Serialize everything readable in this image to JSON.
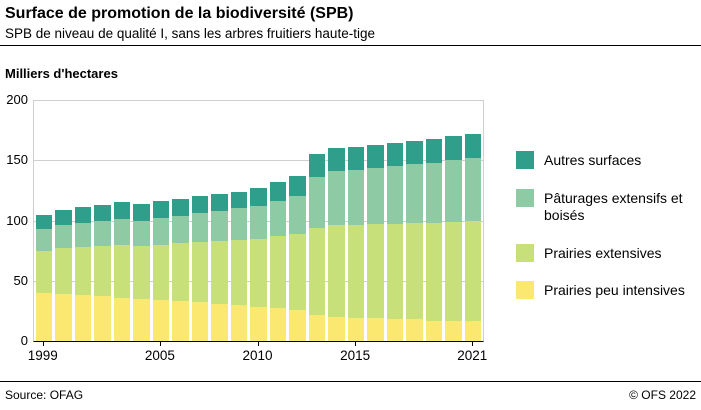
{
  "header": {
    "title": "Surface de promotion de la biodiversité (SPB)",
    "subtitle": "SPB de niveau de qualité I, sans les arbres fruitiers haute-tige"
  },
  "chart": {
    "unit_label": "Milliers d'hectares"
  },
  "chart_data": {
    "type": "bar",
    "stacked": true,
    "title": "Surface de promotion de la biodiversité (SPB)",
    "ylabel": "Milliers d'hectares",
    "ylim": [
      0,
      200
    ],
    "yticks": [
      0,
      50,
      100,
      150,
      200
    ],
    "grid": true,
    "legend_position": "right",
    "x": [
      1999,
      2000,
      2001,
      2002,
      2003,
      2004,
      2005,
      2006,
      2007,
      2008,
      2009,
      2010,
      2011,
      2012,
      2013,
      2014,
      2015,
      2016,
      2017,
      2018,
      2019,
      2020,
      2021
    ],
    "xtick_labels": [
      1999,
      2005,
      2010,
      2015,
      2021
    ],
    "series": [
      {
        "name": "Prairies peu intensives",
        "color": "#fbe870",
        "values": [
          40,
          39,
          38,
          37,
          36,
          35,
          34,
          33,
          32,
          31,
          30,
          28,
          27,
          26,
          22,
          20,
          19,
          19,
          18,
          18,
          17,
          17,
          17
        ]
      },
      {
        "name": "Prairies extensives",
        "color": "#c8e07a",
        "values": [
          35,
          38,
          40,
          42,
          44,
          44,
          46,
          48,
          50,
          52,
          54,
          57,
          60,
          63,
          72,
          76,
          77,
          78,
          79,
          80,
          81,
          82,
          83
        ]
      },
      {
        "name": "Pâturages extensifs et boisés",
        "color": "#8ecaa4",
        "values": [
          18,
          19,
          20,
          21,
          21,
          21,
          22,
          23,
          24,
          25,
          26,
          27,
          29,
          31,
          42,
          45,
          46,
          47,
          48,
          49,
          50,
          51,
          52
        ]
      },
      {
        "name": "Autres surfaces",
        "color": "#2f9f8b",
        "values": [
          12,
          13,
          13,
          13,
          14,
          14,
          14,
          14,
          14,
          14,
          14,
          15,
          16,
          17,
          19,
          19,
          19,
          19,
          19,
          19,
          20,
          20,
          20
        ]
      }
    ],
    "legend_order": [
      "Autres surfaces",
      "Pâturages extensifs et boisés",
      "Prairies extensives",
      "Prairies peu intensives"
    ]
  },
  "footer": {
    "source": "Source: OFAG",
    "copyright": "© OFS 2022"
  }
}
